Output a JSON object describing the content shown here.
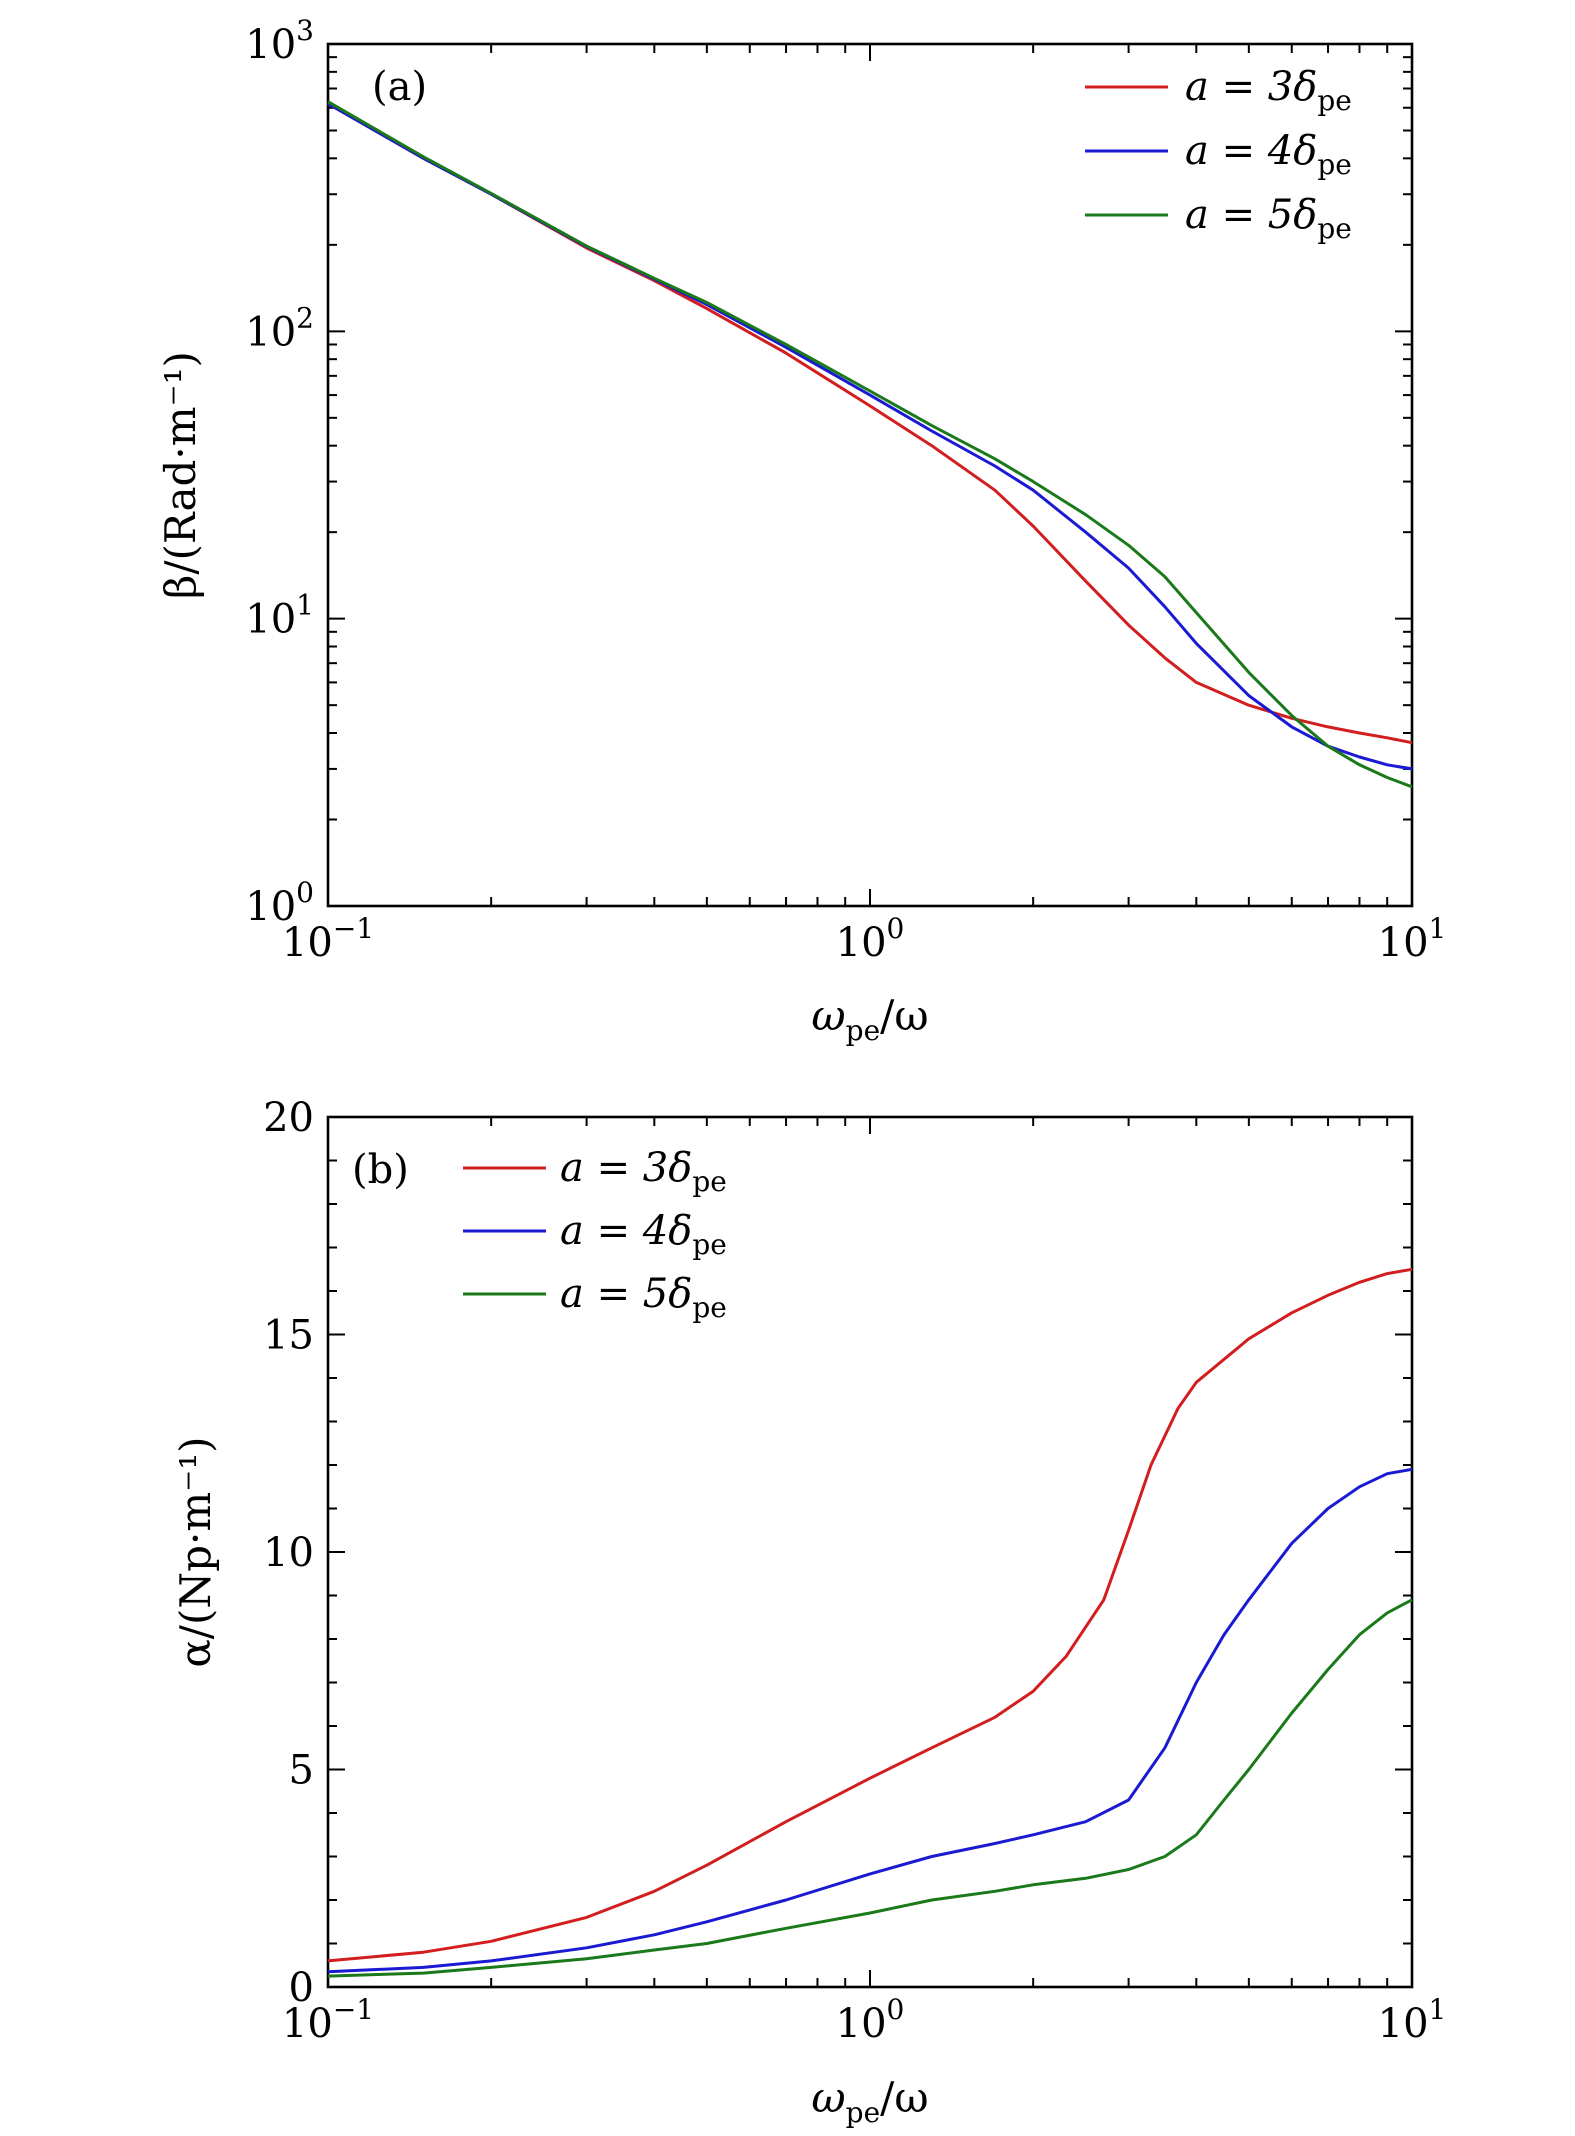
{
  "colors": {
    "red": "#d21e1e",
    "blue": "#1a1ad2",
    "green": "#1a7a1a"
  },
  "chart_data": [
    {
      "id": "a",
      "type": "line",
      "annotation": "(a)",
      "xscale": "log",
      "yscale": "log",
      "xlim": [
        0.1,
        10
      ],
      "ylim": [
        1,
        1000
      ],
      "xlabel": "ωpe/ω",
      "xlabel_main": "ω",
      "xlabel_sub": "pe",
      "xlabel_tail": "/ω",
      "ylabel": "β/(Rad·m⁻¹)",
      "xticks": [
        {
          "value": 0.1,
          "base": "10",
          "exp": "−1"
        },
        {
          "value": 1,
          "base": "10",
          "exp": "0"
        },
        {
          "value": 10,
          "base": "10",
          "exp": "1"
        }
      ],
      "yticks": [
        {
          "value": 1,
          "base": "10",
          "exp": "0"
        },
        {
          "value": 10,
          "base": "10",
          "exp": "1"
        },
        {
          "value": 100,
          "base": "10",
          "exp": "2"
        },
        {
          "value": 1000,
          "base": "10",
          "exp": "3"
        }
      ],
      "legend_position": "top-right",
      "series": [
        {
          "name": "a = 3δpe",
          "label_main": "a = 3δ",
          "label_sub": "pe",
          "color": "#d21e1e",
          "x": [
            0.1,
            0.15,
            0.2,
            0.3,
            0.4,
            0.5,
            0.7,
            1.0,
            1.3,
            1.7,
            2.0,
            2.5,
            3.0,
            3.5,
            4.0,
            5.0,
            6.0,
            7.0,
            8.0,
            9.0,
            10.0
          ],
          "y": [
            620,
            400,
            300,
            195,
            150,
            120,
            84,
            55,
            40,
            28,
            21,
            13.5,
            9.5,
            7.3,
            6.0,
            5.0,
            4.5,
            4.2,
            4.0,
            3.85,
            3.7
          ]
        },
        {
          "name": "a = 4δpe",
          "label_main": "a = 4δ",
          "label_sub": "pe",
          "color": "#1a1ad2",
          "x": [
            0.1,
            0.15,
            0.2,
            0.3,
            0.4,
            0.5,
            0.7,
            1.0,
            1.3,
            1.7,
            2.0,
            2.5,
            3.0,
            3.5,
            4.0,
            5.0,
            6.0,
            7.0,
            8.0,
            9.0,
            10.0
          ],
          "y": [
            620,
            400,
            300,
            197,
            152,
            124,
            88,
            60,
            45,
            34,
            28,
            20,
            15,
            11,
            8.2,
            5.4,
            4.2,
            3.6,
            3.3,
            3.1,
            3.0
          ]
        },
        {
          "name": "a = 5δpe",
          "label_main": "a = 5δ",
          "label_sub": "pe",
          "color": "#1a7a1a",
          "x": [
            0.1,
            0.15,
            0.2,
            0.3,
            0.4,
            0.5,
            0.7,
            1.0,
            1.3,
            1.7,
            2.0,
            2.5,
            3.0,
            3.5,
            4.0,
            5.0,
            6.0,
            7.0,
            8.0,
            9.0,
            10.0
          ],
          "y": [
            630,
            405,
            302,
            198,
            153,
            126,
            90,
            62,
            47,
            36,
            30,
            23,
            18,
            14,
            10.5,
            6.5,
            4.6,
            3.6,
            3.1,
            2.8,
            2.6
          ]
        }
      ]
    },
    {
      "id": "b",
      "type": "line",
      "annotation": "(b)",
      "xscale": "log",
      "yscale": "linear",
      "xlim": [
        0.1,
        10
      ],
      "ylim": [
        0,
        20
      ],
      "xlabel": "ωpe/ω",
      "xlabel_main": "ω",
      "xlabel_sub": "pe",
      "xlabel_tail": "/ω",
      "ylabel": "α/(Np·m⁻¹)",
      "xticks": [
        {
          "value": 0.1,
          "base": "10",
          "exp": "−1"
        },
        {
          "value": 1,
          "base": "10",
          "exp": "0"
        },
        {
          "value": 10,
          "base": "10",
          "exp": "1"
        }
      ],
      "yticks": [
        {
          "value": 0,
          "label": "0"
        },
        {
          "value": 5,
          "label": "5"
        },
        {
          "value": 10,
          "label": "10"
        },
        {
          "value": 15,
          "label": "15"
        },
        {
          "value": 20,
          "label": "20"
        }
      ],
      "legend_position": "top-left",
      "series": [
        {
          "name": "a = 3δpe",
          "label_main": "a = 3δ",
          "label_sub": "pe",
          "color": "#d21e1e",
          "x": [
            0.1,
            0.15,
            0.2,
            0.3,
            0.4,
            0.5,
            0.7,
            1.0,
            1.3,
            1.7,
            2.0,
            2.3,
            2.7,
            3.0,
            3.3,
            3.7,
            4.0,
            5.0,
            6.0,
            7.0,
            8.0,
            9.0,
            10.0
          ],
          "y": [
            0.6,
            0.8,
            1.05,
            1.6,
            2.2,
            2.8,
            3.8,
            4.8,
            5.5,
            6.2,
            6.8,
            7.6,
            8.9,
            10.5,
            12.0,
            13.3,
            13.9,
            14.9,
            15.5,
            15.9,
            16.2,
            16.4,
            16.5
          ]
        },
        {
          "name": "a = 4δpe",
          "label_main": "a = 4δ",
          "label_sub": "pe",
          "color": "#1a1ad2",
          "x": [
            0.1,
            0.15,
            0.2,
            0.3,
            0.4,
            0.5,
            0.7,
            1.0,
            1.3,
            1.7,
            2.0,
            2.5,
            3.0,
            3.5,
            4.0,
            4.5,
            5.0,
            6.0,
            7.0,
            8.0,
            9.0,
            10.0
          ],
          "y": [
            0.35,
            0.45,
            0.6,
            0.9,
            1.2,
            1.5,
            2.0,
            2.6,
            3.0,
            3.3,
            3.5,
            3.8,
            4.3,
            5.5,
            7.0,
            8.1,
            8.9,
            10.2,
            11.0,
            11.5,
            11.8,
            11.9
          ]
        },
        {
          "name": "a = 5δpe",
          "label_main": "a = 5δ",
          "label_sub": "pe",
          "color": "#1a7a1a",
          "x": [
            0.1,
            0.15,
            0.2,
            0.3,
            0.4,
            0.5,
            0.7,
            1.0,
            1.3,
            1.7,
            2.0,
            2.5,
            3.0,
            3.5,
            4.0,
            4.5,
            5.0,
            6.0,
            7.0,
            8.0,
            9.0,
            10.0
          ],
          "y": [
            0.25,
            0.32,
            0.45,
            0.65,
            0.85,
            1.0,
            1.35,
            1.7,
            2.0,
            2.2,
            2.35,
            2.5,
            2.7,
            3.0,
            3.5,
            4.3,
            5.0,
            6.3,
            7.3,
            8.1,
            8.6,
            8.9
          ]
        }
      ]
    }
  ]
}
